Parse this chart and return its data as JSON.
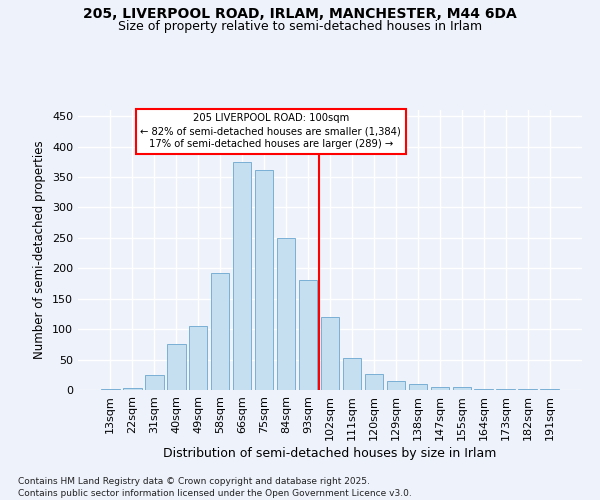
{
  "title_line1": "205, LIVERPOOL ROAD, IRLAM, MANCHESTER, M44 6DA",
  "title_line2": "Size of property relative to semi-detached houses in Irlam",
  "xlabel": "Distribution of semi-detached houses by size in Irlam",
  "ylabel": "Number of semi-detached properties",
  "categories": [
    "13sqm",
    "22sqm",
    "31sqm",
    "40sqm",
    "49sqm",
    "58sqm",
    "66sqm",
    "75sqm",
    "84sqm",
    "93sqm",
    "102sqm",
    "111sqm",
    "120sqm",
    "129sqm",
    "138sqm",
    "147sqm",
    "155sqm",
    "164sqm",
    "173sqm",
    "182sqm",
    "191sqm"
  ],
  "bar_heights": [
    2,
    4,
    25,
    75,
    105,
    193,
    375,
    362,
    250,
    181,
    120,
    53,
    26,
    14,
    10,
    5,
    5,
    2,
    1,
    1,
    1
  ],
  "bar_color": "#c5dff0",
  "bar_edge_color": "#7ab0d4",
  "annotation_title": "205 LIVERPOOL ROAD: 100sqm",
  "annotation_smaller": "← 82% of semi-detached houses are smaller (1,384)",
  "annotation_larger": "17% of semi-detached houses are larger (289) →",
  "ylim": [
    0,
    460
  ],
  "yticks": [
    0,
    50,
    100,
    150,
    200,
    250,
    300,
    350,
    400,
    450
  ],
  "footnote1": "Contains HM Land Registry data © Crown copyright and database right 2025.",
  "footnote2": "Contains public sector information licensed under the Open Government Licence v3.0.",
  "bg_color": "#eef2fb",
  "grid_color": "#ffffff"
}
